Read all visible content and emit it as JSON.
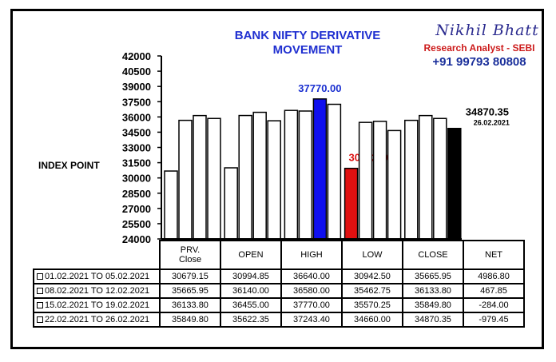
{
  "branding": {
    "name": "Nikhil Bhatt",
    "role": "Research Analyst - SEBI",
    "phone": "+91 99793 80808"
  },
  "chart_data": {
    "type": "bar",
    "title": "BANK NIFTY DERIVATIVE MOVEMENT",
    "ylabel": "INDEX POINT",
    "ylim": [
      24000,
      42000
    ],
    "yticks": [
      24000,
      25500,
      27000,
      28500,
      30000,
      31500,
      33000,
      34500,
      36000,
      37500,
      39000,
      40500,
      42000
    ],
    "categories": [
      "PRV. Close",
      "OPEN",
      "HIGH",
      "LOW",
      "CLOSE"
    ],
    "series": [
      {
        "values": [
          30679.15,
          30994.85,
          36640.0,
          30942.5,
          35665.95
        ]
      },
      {
        "values": [
          35665.95,
          36140.0,
          36580.0,
          35462.75,
          36133.8
        ]
      },
      {
        "values": [
          36133.8,
          36455.0,
          37770.0,
          35570.25,
          35849.8
        ]
      },
      {
        "values": [
          35849.8,
          35622.35,
          37243.4,
          34660.0,
          34870.35
        ]
      }
    ],
    "highlights": [
      {
        "category": "HIGH",
        "series": 2,
        "color": "#1010ee",
        "label": "37770.00"
      },
      {
        "category": "LOW",
        "series": 0,
        "color": "#e01010",
        "label": "30942.50"
      },
      {
        "category": "CLOSE",
        "series": 3,
        "color": "#000000",
        "label": "34870.35",
        "sublabel": "26.02.2021"
      }
    ],
    "label_colors": {
      "HIGH": "#1a2fd0",
      "LOW": "#dd1111",
      "CLOSE": "#000000"
    }
  },
  "table": {
    "headers": [
      "PRV.\nClose",
      "OPEN",
      "HIGH",
      "LOW",
      "CLOSE",
      "NET"
    ],
    "rows": [
      {
        "period": "01.02.2021 TO 05.02.2021",
        "values": [
          "30679.15",
          "30994.85",
          "36640.00",
          "30942.50",
          "35665.95",
          "4986.80"
        ]
      },
      {
        "period": "08.02.2021 TO 12.02.2021",
        "values": [
          "35665.95",
          "36140.00",
          "36580.00",
          "35462.75",
          "36133.80",
          "467.85"
        ]
      },
      {
        "period": "15.02.2021 TO 19.02.2021",
        "values": [
          "36133.80",
          "36455.00",
          "37770.00",
          "35570.25",
          "35849.80",
          "-284.00"
        ]
      },
      {
        "period": "22.02.2021 TO 26.02.2021",
        "values": [
          "35849.80",
          "35622.35",
          "37243.40",
          "34660.00",
          "34870.35",
          "-979.45"
        ]
      }
    ]
  }
}
